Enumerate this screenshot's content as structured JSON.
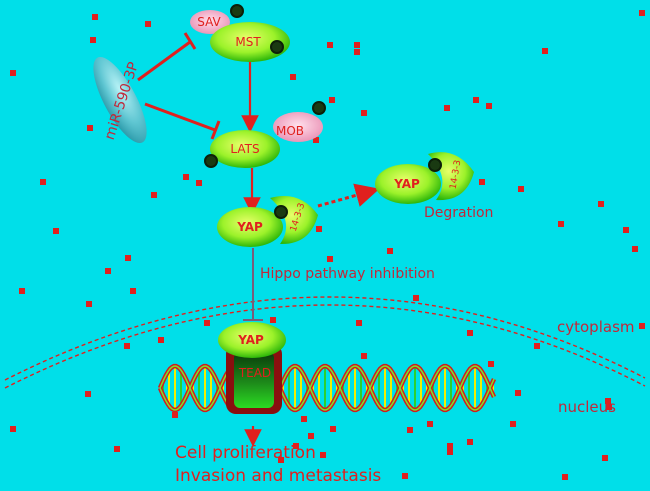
{
  "colors": {
    "background": "#00dfe9",
    "red": "#e0201e",
    "green_light": "#b6ff3a",
    "green_dark": "#2eb70a",
    "pink": "#f6a9c7",
    "teal": "#3fb6c6"
  },
  "nodes": {
    "sav": "SAV",
    "mst": "MST",
    "mob": "MOB",
    "lats": "LATS",
    "yap": "YAP",
    "yap_deg": "YAP",
    "yap_nuc": "YAP",
    "p1433_a": "14-3-3",
    "p1433_b": "14-3-3",
    "tead": "TEAD",
    "mirna": "miR-590-3P"
  },
  "labels": {
    "degradation": "Degration",
    "hippo": "Hippo pathway inhibition",
    "cytoplasm": "cytoplasm",
    "nucleus": "nucleus",
    "outcome1": "Cell proliferation",
    "outcome2": "Invasion and metastasis"
  }
}
